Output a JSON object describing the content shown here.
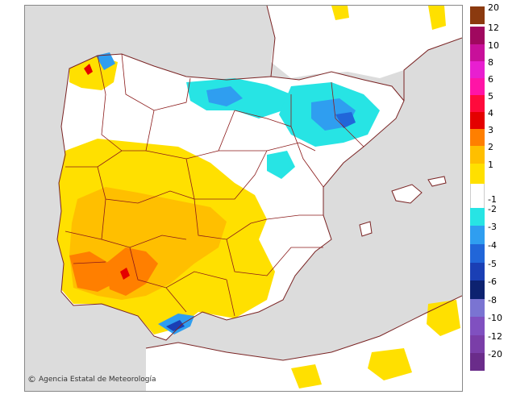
{
  "credit": {
    "copyright_symbol": "©",
    "text": "Agencia Estatal de Meteorología"
  },
  "legend": {
    "items": [
      {
        "label": "20",
        "color": "#8b3a0f"
      },
      {
        "label": "12",
        "color": "#a0085f"
      },
      {
        "label": "10",
        "color": "#c8109a"
      },
      {
        "label": "8",
        "color": "#e81fd0"
      },
      {
        "label": "6",
        "color": "#ff14a6"
      },
      {
        "label": "5",
        "color": "#ff0a3c"
      },
      {
        "label": "4",
        "color": "#e40000"
      },
      {
        "label": "3",
        "color": "#ff7f00"
      },
      {
        "label": "2",
        "color": "#ffbf00"
      },
      {
        "label": "1",
        "color": "#ffe000"
      },
      {
        "label": "",
        "color": "#ffffff"
      },
      {
        "label": "-1",
        "color": "#ffffff"
      },
      {
        "label": "-2",
        "color": "#27e4e4"
      },
      {
        "label": "-3",
        "color": "#2f9ef0"
      },
      {
        "label": "-4",
        "color": "#2166d9"
      },
      {
        "label": "-5",
        "color": "#1a3fb5"
      },
      {
        "label": "-6",
        "color": "#0d2270"
      },
      {
        "label": "-8",
        "color": "#7a74d2"
      },
      {
        "label": "-10",
        "color": "#8050c0"
      },
      {
        "label": "-12",
        "color": "#7a3ea8"
      },
      {
        "label": "-20",
        "color": "#6a2c8a"
      }
    ]
  },
  "colors": {
    "sea": "#dcdcdc",
    "land": "#ffffff",
    "border": "#8b1a1a",
    "coast": "#7a2424"
  }
}
